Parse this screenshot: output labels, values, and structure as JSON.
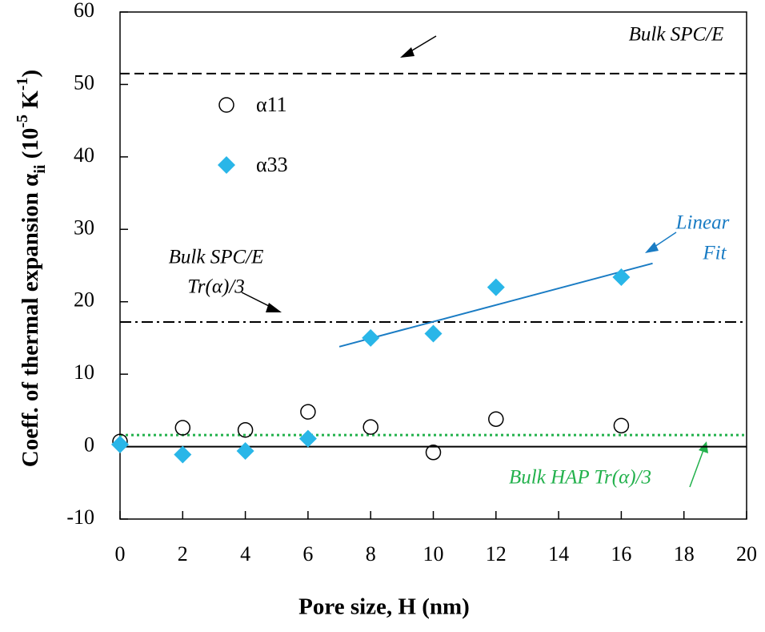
{
  "chart_data": {
    "type": "scatter",
    "x_label": "Pore size, H (nm)",
    "y_label": [
      {
        "text": "Coeff. of thermal expansion α"
      },
      {
        "text": "ii",
        "sub": true
      },
      {
        "text": " (10"
      },
      {
        "text": "-5",
        "sup": true
      },
      {
        "text": " K"
      },
      {
        "text": "-1",
        "sup": true
      },
      {
        "text": ")"
      }
    ],
    "xlim": [
      0,
      20
    ],
    "xticks": [
      0,
      2,
      4,
      6,
      8,
      10,
      12,
      14,
      16,
      18,
      20
    ],
    "ylim": [
      -10,
      60
    ],
    "yticks": [
      -10,
      0,
      10,
      20,
      30,
      40,
      50,
      60
    ],
    "series": [
      {
        "name": "α11",
        "color": "#000000",
        "marker": "open-circle",
        "x": [
          0,
          2,
          4,
          6,
          8,
          10,
          12,
          16
        ],
        "values": [
          0.7,
          2.6,
          2.3,
          4.8,
          2.7,
          -0.8,
          3.8,
          2.9
        ]
      },
      {
        "name": "α33",
        "color": "#29b6e8",
        "marker": "diamond",
        "x": [
          0,
          2,
          4,
          6,
          8,
          10,
          12,
          16
        ],
        "values": [
          0.3,
          -1.1,
          -0.6,
          1.1,
          15.0,
          15.6,
          22.0,
          23.4
        ]
      }
    ],
    "reference_lines": [
      {
        "value": 51.5,
        "style": "dashed",
        "color": "#000000",
        "label": [
          "Bulk SPC/E"
        ]
      },
      {
        "value": 17.2,
        "style": "dashdot",
        "color": "#000000",
        "label": [
          "Bulk SPC/E",
          "Tr(α)/3"
        ]
      },
      {
        "value": 1.6,
        "style": "dotted",
        "color": "#22b14c",
        "label": [
          "Bulk HAP Tr(α)/3"
        ]
      },
      {
        "value": 0,
        "style": "solid",
        "color": "#000000"
      }
    ],
    "fit": {
      "label": [
        "Linear",
        "Fit"
      ],
      "color": "#1a7cc4",
      "x": [
        7,
        17
      ],
      "values": [
        13.8,
        25.3
      ]
    }
  }
}
